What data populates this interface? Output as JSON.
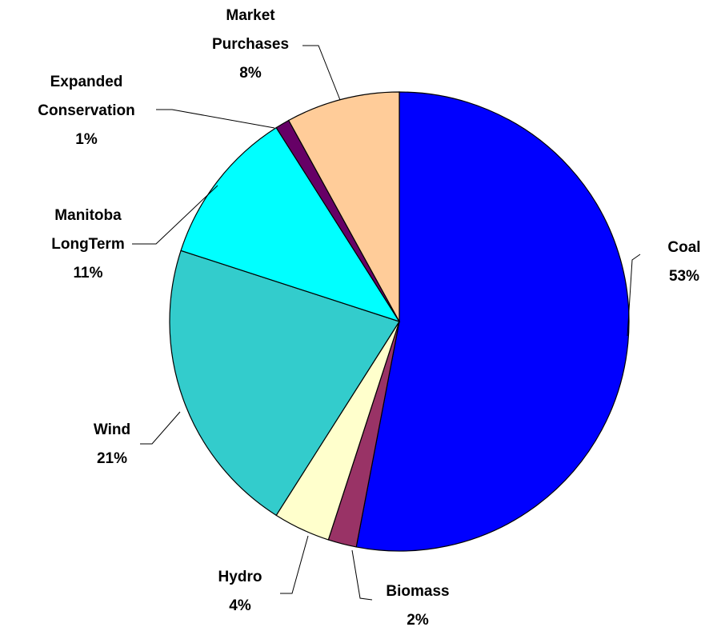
{
  "chart_data": {
    "type": "pie",
    "categories": [
      "Coal",
      "Biomass",
      "Hydro",
      "Wind",
      "Manitoba LongTerm",
      "Expanded Conservation",
      "Market Purchases"
    ],
    "values": [
      53,
      2,
      4,
      21,
      11,
      1,
      8
    ],
    "value_labels": [
      "53%",
      "2%",
      "4%",
      "21%",
      "11%",
      "1%",
      "8%"
    ],
    "colors": [
      "#0000ff",
      "#993366",
      "#ffffcc",
      "#33cccc",
      "#00ffff",
      "#660066",
      "#ffcc99"
    ]
  }
}
